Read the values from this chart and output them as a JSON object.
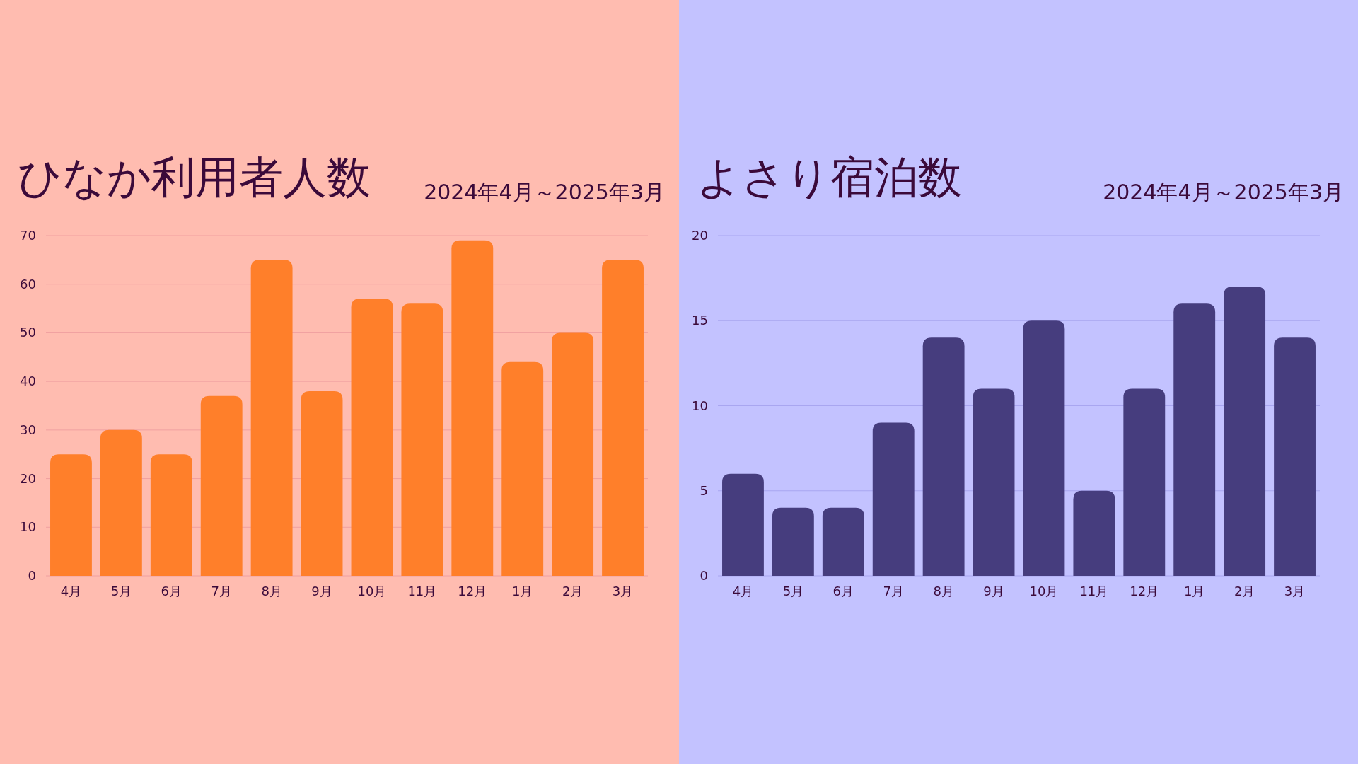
{
  "chart_data": [
    {
      "type": "bar",
      "title": "ひなか利用者人数",
      "subtitle": "2024年4月～2025年3月",
      "categories": [
        "4月",
        "5月",
        "6月",
        "7月",
        "8月",
        "9月",
        "10月",
        "11月",
        "12月",
        "1月",
        "2月",
        "3月"
      ],
      "values": [
        25,
        30,
        25,
        37,
        65,
        38,
        57,
        56,
        69,
        44,
        50,
        65
      ],
      "color": "#ff7f2a",
      "ylim": [
        0,
        70
      ],
      "yticks": [
        0,
        10,
        20,
        30,
        40,
        50,
        60,
        70
      ],
      "grid": "y"
    },
    {
      "type": "bar",
      "title": "よさり宿泊数",
      "subtitle": "2024年4月～2025年3月",
      "categories": [
        "4月",
        "5月",
        "6月",
        "7月",
        "8月",
        "9月",
        "10月",
        "11月",
        "12月",
        "1月",
        "2月",
        "3月"
      ],
      "values": [
        6,
        4,
        4,
        9,
        14,
        11,
        15,
        5,
        11,
        16,
        17,
        14
      ],
      "color": "#463d7e",
      "ylim": [
        0,
        20
      ],
      "yticks": [
        0,
        5,
        10,
        15,
        20
      ],
      "grid": "y"
    }
  ]
}
